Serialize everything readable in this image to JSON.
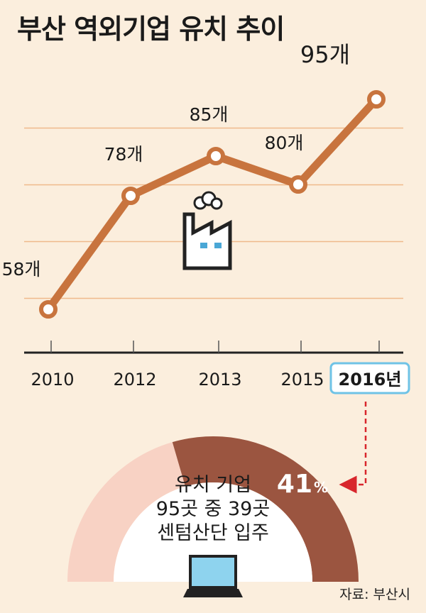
{
  "title": "부산 역외기업 유치 추이",
  "chart_data": {
    "type": "line",
    "categories": [
      "2010",
      "2012",
      "2013",
      "2015",
      "2016년"
    ],
    "values": [
      58,
      78,
      85,
      80,
      95
    ],
    "value_labels": [
      "58개",
      "78개",
      "85개",
      "80개",
      "95개"
    ],
    "ylim": [
      50,
      100
    ],
    "grid": true,
    "highlight_category_index": 4,
    "line_color": "#c8743e"
  },
  "gauge": {
    "percent": 41,
    "percent_number": "41",
    "percent_sign": "%",
    "lines": [
      "유치 기업",
      "95곳 중 39곳",
      "센텀산단 입주"
    ],
    "color_filled": "#9b5540",
    "color_rest": "#f8d2c4"
  },
  "icons": [
    "factory-icon",
    "laptop-icon"
  ],
  "source": "자료: 부산시"
}
